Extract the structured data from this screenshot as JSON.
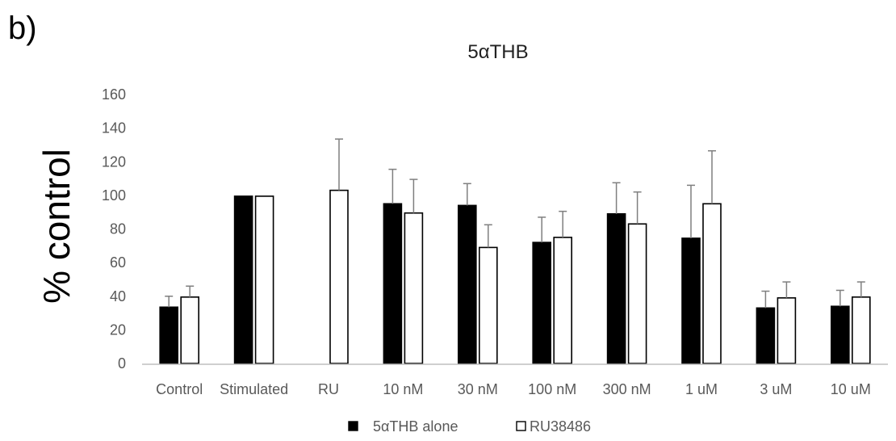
{
  "panel_label": "b)",
  "chart_data": {
    "type": "bar",
    "title": "5αTHB",
    "xlabel": "",
    "ylabel": "% control",
    "ylim": [
      0,
      160
    ],
    "yticks": [
      0,
      20,
      40,
      60,
      80,
      100,
      120,
      140,
      160
    ],
    "grid": false,
    "legend_position": "bottom",
    "categories": [
      "Control",
      "Stimulated",
      "RU",
      "10 nM",
      "30 nM",
      "100 nM",
      "300 nM",
      "1 uM",
      "3 uM",
      "10 uM"
    ],
    "series": [
      {
        "name": "5αTHB alone",
        "fill": "#000000",
        "values": [
          33.5,
          99.5,
          null,
          95,
          94,
          72,
          89,
          74.5,
          33,
          34
        ],
        "errors": [
          6.5,
          0,
          null,
          20.5,
          13,
          15,
          18.5,
          31.5,
          10,
          9.5
        ]
      },
      {
        "name": "RU38486",
        "fill": "#ffffff",
        "values": [
          39.5,
          99.5,
          103,
          89.5,
          69,
          75,
          83,
          95,
          39,
          39.5
        ],
        "errors": [
          6.5,
          0,
          30.5,
          20,
          13.5,
          15.5,
          19,
          31.5,
          9.5,
          9
        ]
      }
    ],
    "colors": {
      "axis": "#bfbfbf",
      "error_bar": "#7f7f7f",
      "bar_outline": "#000000"
    }
  }
}
